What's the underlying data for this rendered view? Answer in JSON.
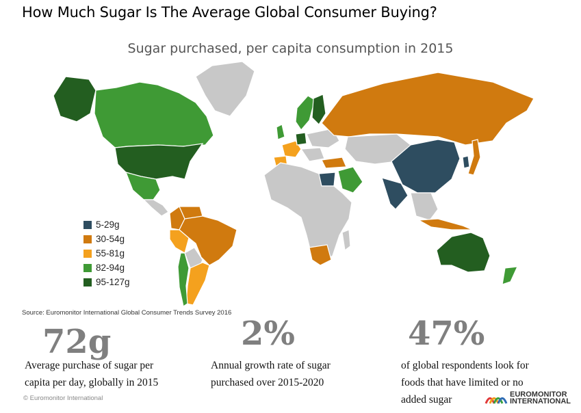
{
  "header": {
    "title": "How Much Sugar Is The Average Global Consumer Buying?",
    "subtitle": "Sugar purchased, per capita consumption in 2015"
  },
  "chart_data": {
    "type": "choropleth",
    "title": "Sugar purchased, per capita consumption in 2015",
    "colors": {
      "no_data": "#c8c8c8",
      "ocean": "#ffffff",
      "border": "#ffffff"
    },
    "legend": [
      {
        "label": "5-29g",
        "color": "#2e4d60"
      },
      {
        "label": "30-54g",
        "color": "#d07a0f"
      },
      {
        "label": "55-81g",
        "color": "#f4a11e"
      },
      {
        "label": "82-94g",
        "color": "#3f9a35"
      },
      {
        "label": "95-127g",
        "color": "#235e20"
      }
    ],
    "regions": [
      {
        "name": "United States",
        "bin": "95-127g"
      },
      {
        "name": "Canada",
        "bin": "82-94g"
      },
      {
        "name": "Alaska",
        "bin": "95-127g"
      },
      {
        "name": "Mexico",
        "bin": "82-94g"
      },
      {
        "name": "Brazil",
        "bin": "30-54g"
      },
      {
        "name": "Colombia",
        "bin": "30-54g"
      },
      {
        "name": "Venezuela",
        "bin": "30-54g"
      },
      {
        "name": "Peru",
        "bin": "55-81g"
      },
      {
        "name": "Argentina",
        "bin": "55-81g"
      },
      {
        "name": "Chile",
        "bin": "82-94g"
      },
      {
        "name": "Russia",
        "bin": "30-54g"
      },
      {
        "name": "China",
        "bin": "5-29g"
      },
      {
        "name": "India",
        "bin": "5-29g"
      },
      {
        "name": "Japan",
        "bin": "30-54g"
      },
      {
        "name": "Australia",
        "bin": "95-127g"
      },
      {
        "name": "New Zealand",
        "bin": "82-94g"
      },
      {
        "name": "Saudi Arabia",
        "bin": "82-94g"
      },
      {
        "name": "Egypt",
        "bin": "5-29g"
      },
      {
        "name": "South Africa",
        "bin": "30-54g"
      },
      {
        "name": "Turkey",
        "bin": "30-54g"
      },
      {
        "name": "Germany",
        "bin": "95-127g"
      },
      {
        "name": "France",
        "bin": "55-81g"
      },
      {
        "name": "Spain",
        "bin": "55-81g"
      },
      {
        "name": "United Kingdom",
        "bin": "82-94g"
      },
      {
        "name": "Sweden",
        "bin": "82-94g"
      },
      {
        "name": "Finland",
        "bin": "95-127g"
      },
      {
        "name": "Indonesia",
        "bin": "30-54g"
      },
      {
        "name": "South Korea",
        "bin": "5-29g"
      }
    ]
  },
  "source": "Source: Euromonitor International Global Consumer Trends Survey 2016",
  "stats": [
    {
      "value": "72g",
      "text_lines": [
        "Average purchase of sugar per",
        "capita per day, globally in 2015"
      ]
    },
    {
      "value": "2%",
      "text_lines": [
        "Annual growth rate of sugar",
        "purchased over 2015-2020"
      ]
    },
    {
      "value": "47%",
      "text_lines": [
        "of global respondents look for",
        "foods that have limited or no",
        "added sugar"
      ]
    }
  ],
  "footer": {
    "copyright": "© Euromonitor International",
    "logo_line1": "EUROMONITOR",
    "logo_line2": "INTERNATIONAL"
  }
}
